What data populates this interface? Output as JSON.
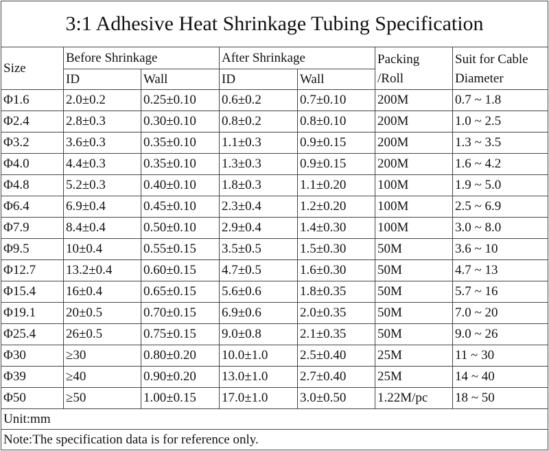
{
  "header": {
    "title": "3:1 Adhesive Heat Shrinkage Tubing Specification",
    "size": "Size",
    "before": "Before Shrinkage",
    "after": "After Shrinkage",
    "sub": [
      "ID",
      "Wall",
      "ID",
      "Wall"
    ],
    "packing": [
      "Packing",
      "/Roll"
    ],
    "suit": [
      "Suit for Cable",
      "Diameter"
    ]
  },
  "table": {
    "rows": [
      [
        "Φ1.6",
        "2.0±0.2",
        "0.25±0.10",
        "0.6±0.2",
        "0.7±0.10",
        "200M",
        "0.7 ~ 1.8"
      ],
      [
        "Φ2.4",
        "2.8±0.3",
        "0.30±0.10",
        "0.8±0.2",
        "0.8±0.10",
        "200M",
        "1.0 ~ 2.5"
      ],
      [
        "Φ3.2",
        "3.6±0.3",
        "0.35±0.10",
        "1.1±0.3",
        "0.9±0.15",
        "200M",
        "1.3 ~ 3.5"
      ],
      [
        "Φ4.0",
        "4.4±0.3",
        "0.35±0.10",
        "1.3±0.3",
        "0.9±0.15",
        "200M",
        "1.6 ~ 4.2"
      ],
      [
        "Φ4.8",
        "5.2±0.3",
        "0.40±0.10",
        "1.8±0.3",
        "1.1±0.20",
        "100M",
        "1.9 ~ 5.0"
      ],
      [
        "Φ6.4",
        "6.9±0.4",
        "0.45±0.10",
        "2.3±0.4",
        "1.2±0.20",
        "100M",
        "2.5 ~ 6.9"
      ],
      [
        "Φ7.9",
        "8.4±0.4",
        "0.50±0.10",
        "2.9±0.4",
        "1.4±0.30",
        "100M",
        "3.0 ~ 8.0"
      ],
      [
        "Φ9.5",
        "10±0.4",
        "0.55±0.15",
        "3.5±0.5",
        "1.5±0.30",
        "50M",
        "3.6 ~ 10"
      ],
      [
        "Φ12.7",
        "13.2±0.4",
        "0.60±0.15",
        "4.7±0.5",
        "1.6±0.30",
        "50M",
        "4.7 ~ 13"
      ],
      [
        "Φ15.4",
        "16±0.4",
        "0.65±0.15",
        "5.6±0.6",
        "1.8±0.35",
        "50M",
        "5.7 ~ 16"
      ],
      [
        "Φ19.1",
        "20±0.5",
        "0.70±0.15",
        "6.9±0.6",
        "2.0±0.35",
        "50M",
        "7.0 ~ 20"
      ],
      [
        "Φ25.4",
        "26±0.5",
        "0.75±0.15",
        "9.0±0.8",
        "2.1±0.35",
        "50M",
        "9.0 ~ 26"
      ],
      [
        "Φ30",
        "≥30",
        "0.80±0.20",
        "10.0±1.0",
        "2.5±0.40",
        "25M",
        "11 ~ 30"
      ],
      [
        "Φ39",
        "≥40",
        "0.90±0.20",
        "13.0±1.0",
        "2.7±0.40",
        "25M",
        "14 ~ 40"
      ],
      [
        "Φ50",
        "≥50",
        "1.00±0.15",
        "17.0±1.0",
        "3.0±0.50",
        "1.22M/pc",
        "18 ~ 50"
      ]
    ]
  },
  "footer": {
    "unit": "Unit:mm",
    "note": "Note:The specification data is for reference only."
  }
}
